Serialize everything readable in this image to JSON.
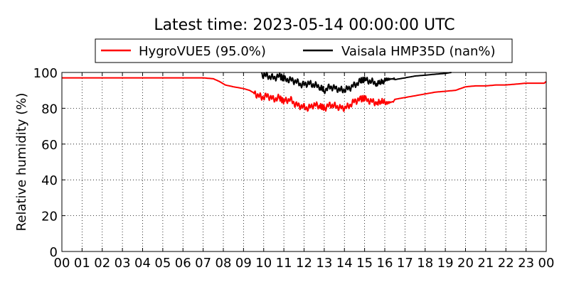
{
  "chart_data": {
    "type": "line",
    "title": "Latest time: 2023-05-14 00:00:00 UTC",
    "xlabel": "",
    "ylabel": "Relative humidity (%)",
    "xlim": [
      0,
      24
    ],
    "ylim": [
      0,
      100
    ],
    "x_ticks": [
      "00",
      "01",
      "02",
      "03",
      "04",
      "05",
      "06",
      "07",
      "08",
      "09",
      "10",
      "11",
      "12",
      "13",
      "14",
      "15",
      "16",
      "17",
      "18",
      "19",
      "20",
      "21",
      "22",
      "23",
      "00"
    ],
    "y_ticks": [
      0,
      20,
      40,
      60,
      80,
      100
    ],
    "grid": true,
    "legend_position": "top",
    "series": [
      {
        "name": "HygroVUE5 (95.0%)",
        "color": "#ff0000",
        "x": [
          0,
          1,
          2,
          3,
          4,
          5,
          6,
          7,
          7.5,
          7.8,
          8.1,
          8.5,
          9.0,
          9.3,
          9.6,
          9.9,
          10.2,
          10.5,
          10.8,
          11.0,
          11.3,
          11.6,
          11.9,
          12.2,
          12.5,
          12.8,
          13.0,
          13.3,
          13.6,
          13.9,
          14.2,
          14.5,
          14.8,
          15.0,
          15.3,
          15.6,
          16.0,
          16.5,
          17.0,
          17.5,
          18.0,
          18.5,
          19.0,
          19.5,
          20.0,
          20.5,
          21.0,
          21.5,
          22.0,
          22.5,
          23.0,
          23.5,
          23.9,
          24.0
        ],
        "values": [
          97,
          97,
          97,
          97,
          97,
          97,
          97,
          97,
          96.5,
          95,
          93,
          92,
          91,
          90,
          88,
          86,
          87,
          85,
          86,
          84,
          85,
          82,
          81,
          80,
          82,
          81,
          80,
          82,
          81,
          80,
          81,
          84,
          85,
          85,
          84,
          83,
          84,
          85,
          86,
          87,
          88,
          89,
          89.5,
          90,
          92,
          92.5,
          92.5,
          93,
          93,
          93.5,
          94,
          94,
          94,
          95
        ]
      },
      {
        "name": "Vaisala HMP35D (nan%)",
        "color": "#000000",
        "x": [
          9.9,
          10.2,
          10.5,
          10.8,
          11.0,
          11.3,
          11.6,
          11.9,
          12.2,
          12.5,
          12.8,
          13.0,
          13.3,
          13.6,
          13.9,
          14.2,
          14.5,
          14.8,
          15.0,
          15.3,
          15.6,
          16.0,
          16.5,
          17.0,
          17.5,
          18.0,
          18.5,
          19.0,
          19.3
        ],
        "values": [
          99,
          98,
          97,
          98,
          96,
          96,
          95,
          93,
          94,
          93,
          92,
          90,
          92,
          91,
          90,
          91,
          93,
          95,
          96,
          95,
          94,
          95,
          96,
          97,
          98,
          98.5,
          99,
          99.5,
          100
        ]
      }
    ]
  }
}
